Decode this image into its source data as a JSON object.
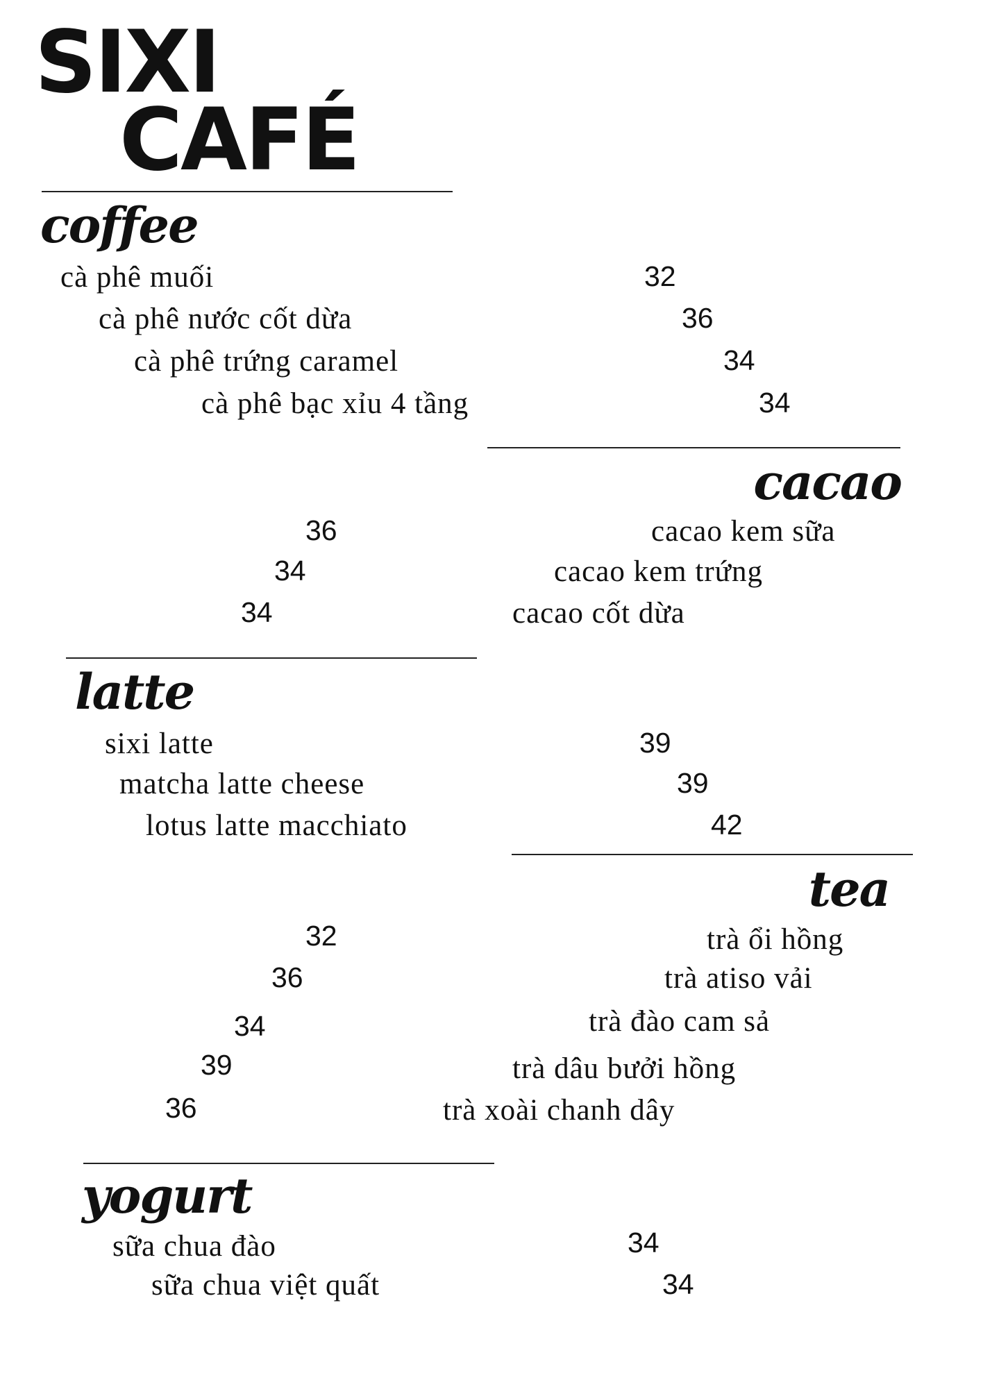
{
  "header": {
    "title_line1": "SIXI",
    "title_line2": "CAFÉ"
  },
  "sections": [
    {
      "title": "coffee",
      "items": [
        {
          "name": "cà phê muối",
          "price": "32"
        },
        {
          "name": "cà phê nước cốt dừa",
          "price": "36"
        },
        {
          "name": "cà phê trứng caramel",
          "price": "34"
        },
        {
          "name": "cà phê bạc xỉu 4 tầng",
          "price": "34"
        }
      ]
    },
    {
      "title": "cacao",
      "items": [
        {
          "name": "cacao kem sữa",
          "price": "36"
        },
        {
          "name": "cacao kem trứng",
          "price": "34"
        },
        {
          "name": "cacao cốt dừa",
          "price": "34"
        }
      ]
    },
    {
      "title": "latte",
      "items": [
        {
          "name": "sixi latte",
          "price": "39"
        },
        {
          "name": "matcha latte cheese",
          "price": "39"
        },
        {
          "name": "lotus latte macchiato",
          "price": "42"
        }
      ]
    },
    {
      "title": "tea",
      "items": [
        {
          "name": "trà ổi hồng",
          "price": "32"
        },
        {
          "name": "trà atiso vải",
          "price": "36"
        },
        {
          "name": "trà đào cam sả",
          "price": "34"
        },
        {
          "name": "trà dâu bưởi hồng",
          "price": "39"
        },
        {
          "name": "trà xoài chanh dây",
          "price": "36"
        }
      ]
    },
    {
      "title": "yogurt",
      "items": [
        {
          "name": "sữa chua đào",
          "price": "34"
        },
        {
          "name": "sữa chua việt quất",
          "price": "34"
        }
      ]
    }
  ]
}
